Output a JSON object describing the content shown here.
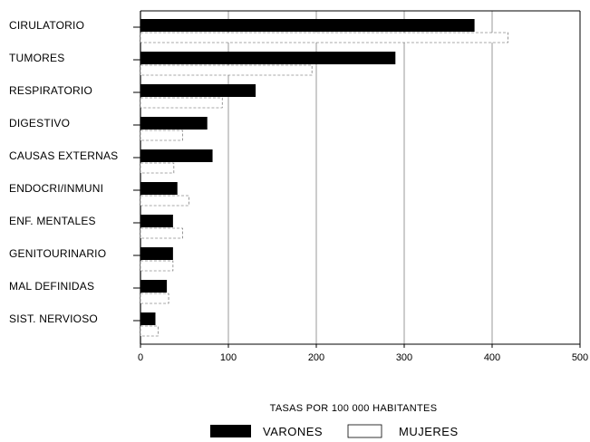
{
  "chart_data": {
    "type": "bar",
    "orientation": "horizontal",
    "categories": [
      "CIRULATORIO",
      "TUMORES",
      "RESPIRATORIO",
      "DIGESTIVO",
      "CAUSAS EXTERNAS",
      "ENDOCRI/INMUNI",
      "ENF. MENTALES",
      "GENITOURINARIO",
      "MAL DEFINIDAS",
      "SIST. NERVIOSO"
    ],
    "series": [
      {
        "name": "VARONES",
        "color": "#000000",
        "values": [
          380,
          290,
          131,
          76,
          82,
          42,
          37,
          37,
          30,
          17
        ]
      },
      {
        "name": "MUJERES",
        "color": "#ffffff",
        "values": [
          418,
          195,
          93,
          48,
          38,
          55,
          48,
          37,
          32,
          20
        ]
      }
    ],
    "xlabel": "TASAS POR 100 000 HABITANTES",
    "ylabel": "",
    "xlim": [
      0,
      500
    ],
    "xticks": [
      "0",
      "100",
      "200",
      "300",
      "400",
      "500"
    ],
    "grid": true,
    "legend_position": "bottom"
  }
}
